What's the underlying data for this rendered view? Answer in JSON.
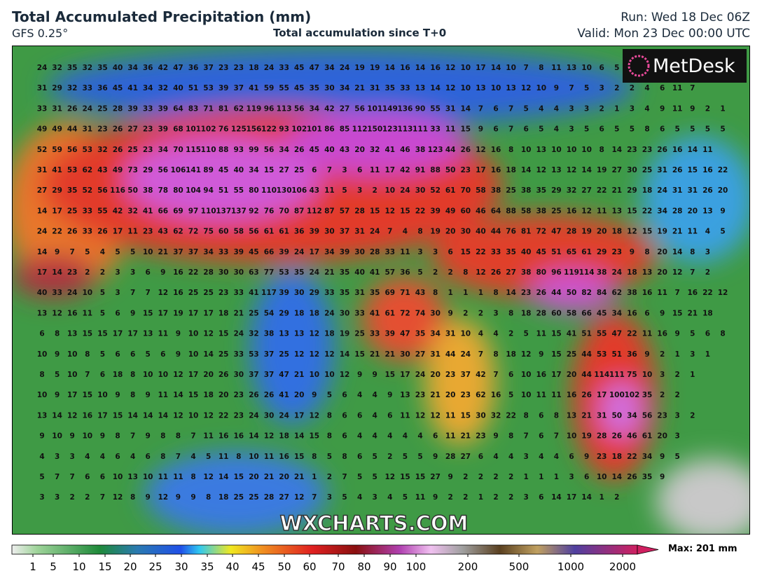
{
  "header": {
    "title": "Total Accumulated Precipitation (mm)",
    "model": "GFS 0.25°",
    "subtitle": "Total accumulation since T+0",
    "run": "Run: Wed 18 Dec 06Z",
    "valid": "Valid: Mon 23 Dec 00:00 UTC"
  },
  "map": {
    "logo": "MetDesk",
    "watermark": "WXCHARTS.COM",
    "grid": [
      [
        24,
        32,
        35,
        32,
        35,
        40,
        34,
        36,
        42,
        47,
        36,
        37,
        23,
        23,
        18,
        24,
        33,
        45,
        47,
        34,
        24,
        19,
        19,
        14,
        16,
        14,
        16,
        12,
        10,
        17,
        14,
        10,
        7,
        8,
        11,
        13,
        10,
        6,
        5
      ],
      [
        31,
        29,
        32,
        33,
        36,
        45,
        41,
        34,
        32,
        40,
        51,
        53,
        39,
        37,
        41,
        59,
        55,
        45,
        35,
        30,
        34,
        21,
        31,
        35,
        33,
        13,
        14,
        12,
        10,
        13,
        10,
        13,
        12,
        10,
        9,
        7,
        5,
        3,
        2,
        2,
        4,
        6,
        11,
        7
      ],
      [
        33,
        31,
        26,
        24,
        25,
        28,
        39,
        33,
        39,
        64,
        83,
        71,
        81,
        62,
        119,
        96,
        113,
        56,
        34,
        42,
        27,
        56,
        101,
        149,
        136,
        90,
        55,
        31,
        14,
        7,
        6,
        7,
        5,
        4,
        4,
        3,
        3,
        2,
        1,
        3,
        4,
        9,
        11,
        9,
        2,
        1
      ],
      [
        49,
        49,
        44,
        31,
        23,
        26,
        27,
        23,
        39,
        68,
        101,
        102,
        76,
        125,
        156,
        122,
        93,
        102,
        101,
        86,
        85,
        112,
        150,
        123,
        113,
        111,
        33,
        11,
        15,
        9,
        6,
        7,
        6,
        5,
        4,
        3,
        5,
        6,
        5,
        5,
        8,
        6,
        5,
        5,
        5,
        5
      ],
      [
        52,
        59,
        56,
        53,
        32,
        26,
        25,
        23,
        34,
        70,
        115,
        110,
        88,
        93,
        99,
        56,
        34,
        26,
        45,
        40,
        43,
        20,
        32,
        41,
        46,
        38,
        123,
        44,
        26,
        12,
        16,
        8,
        10,
        13,
        10,
        10,
        10,
        8,
        14,
        23,
        23,
        26,
        16,
        14,
        11
      ],
      [
        31,
        41,
        53,
        62,
        43,
        49,
        73,
        29,
        56,
        106,
        141,
        89,
        45,
        40,
        34,
        15,
        27,
        25,
        6,
        7,
        3,
        6,
        11,
        17,
        42,
        91,
        88,
        50,
        23,
        17,
        16,
        18,
        14,
        12,
        13,
        12,
        14,
        19,
        27,
        30,
        25,
        31,
        26,
        15,
        16,
        22
      ],
      [
        27,
        29,
        35,
        52,
        56,
        116,
        50,
        38,
        78,
        80,
        104,
        94,
        51,
        55,
        80,
        110,
        130,
        106,
        43,
        11,
        5,
        3,
        2,
        10,
        24,
        30,
        52,
        61,
        70,
        58,
        38,
        25,
        38,
        35,
        29,
        32,
        27,
        22,
        21,
        29,
        18,
        24,
        31,
        31,
        26,
        20
      ],
      [
        14,
        17,
        25,
        33,
        55,
        42,
        32,
        41,
        66,
        69,
        97,
        110,
        137,
        137,
        92,
        76,
        70,
        87,
        112,
        87,
        57,
        28,
        15,
        12,
        15,
        22,
        39,
        49,
        60,
        46,
        64,
        88,
        58,
        38,
        25,
        16,
        12,
        11,
        13,
        15,
        22,
        34,
        28,
        20,
        13,
        9
      ],
      [
        24,
        22,
        26,
        33,
        26,
        17,
        11,
        23,
        43,
        62,
        72,
        75,
        60,
        58,
        56,
        61,
        61,
        36,
        39,
        30,
        37,
        31,
        24,
        7,
        4,
        8,
        19,
        20,
        30,
        40,
        44,
        76,
        81,
        72,
        47,
        28,
        19,
        20,
        18,
        12,
        15,
        19,
        21,
        11,
        4,
        5
      ],
      [
        14,
        9,
        7,
        5,
        4,
        5,
        5,
        10,
        21,
        37,
        37,
        34,
        33,
        39,
        45,
        66,
        39,
        24,
        17,
        34,
        39,
        30,
        28,
        33,
        11,
        3,
        3,
        6,
        15,
        22,
        33,
        35,
        40,
        45,
        51,
        65,
        61,
        29,
        23,
        9,
        8,
        20,
        14,
        8,
        3
      ],
      [
        17,
        14,
        23,
        2,
        2,
        3,
        3,
        6,
        9,
        16,
        22,
        28,
        30,
        30,
        63,
        77,
        53,
        35,
        24,
        21,
        35,
        40,
        41,
        57,
        36,
        5,
        2,
        2,
        8,
        12,
        26,
        27,
        38,
        80,
        96,
        119,
        114,
        38,
        24,
        18,
        13,
        20,
        12,
        7,
        2
      ],
      [
        40,
        33,
        24,
        10,
        5,
        3,
        7,
        7,
        12,
        16,
        25,
        25,
        23,
        33,
        41,
        117,
        39,
        30,
        29,
        33,
        35,
        31,
        35,
        69,
        71,
        43,
        8,
        1,
        1,
        1,
        8,
        14,
        23,
        26,
        44,
        50,
        82,
        84,
        62,
        38,
        16,
        11,
        7,
        16,
        22,
        12
      ],
      [
        13,
        12,
        16,
        11,
        5,
        6,
        9,
        15,
        17,
        19,
        17,
        17,
        18,
        21,
        25,
        54,
        29,
        18,
        18,
        24,
        30,
        33,
        41,
        61,
        72,
        74,
        30,
        9,
        2,
        2,
        3,
        8,
        18,
        28,
        60,
        58,
        66,
        45,
        34,
        16,
        6,
        9,
        15,
        21,
        18
      ],
      [
        6,
        8,
        13,
        15,
        15,
        17,
        17,
        13,
        11,
        9,
        10,
        12,
        15,
        24,
        32,
        38,
        13,
        13,
        12,
        18,
        19,
        25,
        33,
        39,
        47,
        35,
        34,
        31,
        10,
        4,
        4,
        2,
        5,
        11,
        15,
        41,
        51,
        55,
        47,
        22,
        11,
        16,
        9,
        5,
        6,
        8
      ],
      [
        10,
        9,
        10,
        8,
        5,
        6,
        6,
        5,
        6,
        9,
        10,
        14,
        25,
        33,
        53,
        37,
        25,
        12,
        12,
        12,
        14,
        15,
        21,
        21,
        30,
        27,
        31,
        44,
        24,
        7,
        8,
        18,
        12,
        9,
        15,
        25,
        44,
        53,
        51,
        36,
        9,
        2,
        1,
        3,
        1
      ],
      [
        8,
        5,
        10,
        7,
        6,
        18,
        8,
        10,
        10,
        12,
        17,
        20,
        26,
        30,
        37,
        37,
        47,
        21,
        10,
        10,
        12,
        9,
        9,
        15,
        17,
        24,
        20,
        23,
        37,
        42,
        7,
        6,
        10,
        16,
        17,
        20,
        44,
        114,
        111,
        75,
        10,
        3,
        2,
        1
      ],
      [
        10,
        9,
        17,
        15,
        10,
        9,
        8,
        9,
        11,
        14,
        15,
        18,
        20,
        23,
        26,
        26,
        41,
        20,
        9,
        5,
        6,
        4,
        4,
        9,
        13,
        23,
        21,
        20,
        23,
        62,
        16,
        5,
        10,
        11,
        11,
        16,
        26,
        17,
        100,
        102,
        35,
        2,
        2
      ],
      [
        13,
        14,
        12,
        16,
        17,
        15,
        14,
        14,
        14,
        12,
        10,
        12,
        22,
        23,
        24,
        30,
        24,
        17,
        12,
        8,
        6,
        6,
        4,
        6,
        11,
        12,
        12,
        11,
        15,
        30,
        32,
        22,
        8,
        6,
        8,
        13,
        21,
        31,
        50,
        34,
        56,
        23,
        3,
        2
      ],
      [
        9,
        10,
        9,
        10,
        9,
        8,
        7,
        9,
        8,
        8,
        7,
        11,
        16,
        16,
        14,
        12,
        18,
        14,
        15,
        8,
        6,
        4,
        4,
        4,
        4,
        4,
        6,
        11,
        21,
        23,
        9,
        8,
        7,
        6,
        7,
        10,
        19,
        28,
        26,
        46,
        61,
        20,
        3
      ],
      [
        4,
        3,
        3,
        4,
        4,
        6,
        4,
        6,
        8,
        7,
        4,
        5,
        11,
        8,
        10,
        11,
        16,
        15,
        8,
        5,
        8,
        6,
        5,
        2,
        5,
        5,
        9,
        28,
        27,
        6,
        4,
        4,
        3,
        4,
        4,
        6,
        9,
        23,
        18,
        22,
        34,
        9,
        5
      ],
      [
        5,
        7,
        7,
        6,
        6,
        10,
        13,
        10,
        11,
        11,
        8,
        12,
        14,
        15,
        20,
        21,
        20,
        21,
        1,
        2,
        7,
        5,
        5,
        12,
        15,
        15,
        27,
        9,
        2,
        2,
        2,
        2,
        1,
        1,
        1,
        3,
        6,
        10,
        14,
        26,
        35,
        9
      ],
      [
        3,
        3,
        2,
        2,
        7,
        12,
        8,
        9,
        12,
        9,
        9,
        8,
        18,
        25,
        25,
        28,
        27,
        12,
        7,
        3,
        5,
        4,
        3,
        4,
        5,
        11,
        9,
        2,
        2,
        1,
        2,
        2,
        3,
        6,
        14,
        17,
        14,
        1,
        2
      ]
    ]
  },
  "colorbar": {
    "labels": [
      1,
      5,
      10,
      15,
      20,
      25,
      30,
      35,
      40,
      45,
      50,
      60,
      70,
      80,
      90,
      100,
      200,
      500,
      1000,
      2000
    ],
    "max_label": "Max: 201 mm"
  }
}
